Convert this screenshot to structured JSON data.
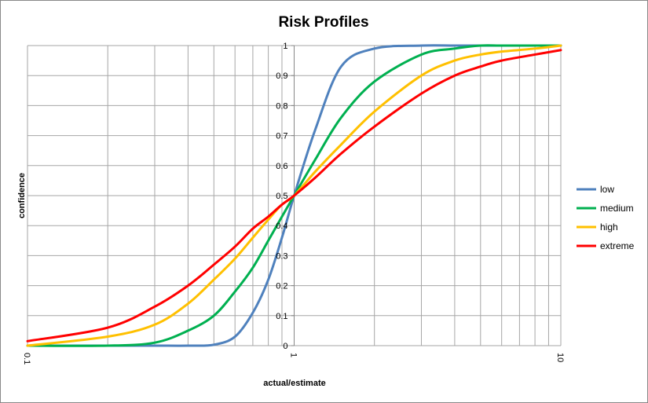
{
  "chart_data": {
    "type": "line",
    "title": "Risk Profiles",
    "xlabel": "actual/estimate",
    "ylabel": "confidence",
    "x_scale": "log",
    "xlim": [
      0.1,
      10
    ],
    "ylim": [
      0,
      1
    ],
    "x_tick_labels": [
      "0.1",
      "1",
      "10"
    ],
    "y_tick_labels": [
      "0",
      "0.1",
      "0.2",
      "0.3",
      "0.4",
      "0.5",
      "0.6",
      "0.7",
      "0.8",
      "0.9",
      "1"
    ],
    "grid": true,
    "legend_position": "right",
    "x": [
      0.1,
      0.2,
      0.3,
      0.4,
      0.5,
      0.6,
      0.7,
      0.8,
      0.9,
      1,
      1.2,
      1.5,
      2,
      3,
      4,
      5,
      6,
      8,
      10
    ],
    "series": [
      {
        "name": "low",
        "color": "#4F81BD",
        "values": [
          0,
          0,
          0,
          0,
          0.003,
          0.03,
          0.11,
          0.22,
          0.36,
          0.5,
          0.72,
          0.93,
          0.99,
          1,
          1,
          1,
          1,
          1,
          1
        ]
      },
      {
        "name": "medium",
        "color": "#00B050",
        "values": [
          0,
          0,
          0.01,
          0.05,
          0.1,
          0.18,
          0.26,
          0.35,
          0.43,
          0.5,
          0.62,
          0.76,
          0.88,
          0.97,
          0.99,
          1,
          1,
          1,
          1
        ]
      },
      {
        "name": "high",
        "color": "#FFC000",
        "values": [
          0,
          0.03,
          0.07,
          0.14,
          0.22,
          0.29,
          0.36,
          0.42,
          0.47,
          0.5,
          0.58,
          0.67,
          0.78,
          0.9,
          0.95,
          0.97,
          0.98,
          0.99,
          1
        ]
      },
      {
        "name": "extreme",
        "color": "#FF0000",
        "values": [
          0.015,
          0.06,
          0.13,
          0.2,
          0.27,
          0.33,
          0.39,
          0.43,
          0.47,
          0.5,
          0.56,
          0.64,
          0.73,
          0.84,
          0.9,
          0.93,
          0.95,
          0.97,
          0.985
        ]
      }
    ]
  }
}
